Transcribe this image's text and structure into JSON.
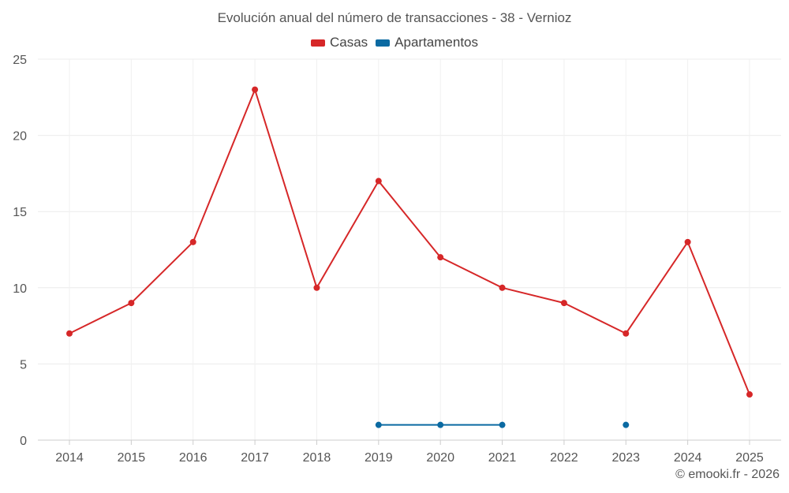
{
  "chart_data": {
    "type": "line",
    "title": "Evolución anual del número de transacciones - 38 - Vernioz",
    "xlabel": "",
    "ylabel": "",
    "categories": [
      "2014",
      "2015",
      "2016",
      "2017",
      "2018",
      "2019",
      "2020",
      "2021",
      "2022",
      "2023",
      "2024",
      "2025"
    ],
    "series": [
      {
        "name": "Casas",
        "color": "#d62728",
        "values": [
          7,
          9,
          13,
          23,
          10,
          17,
          12,
          10,
          9,
          7,
          13,
          3
        ]
      },
      {
        "name": "Apartamentos",
        "color": "#0b6aa2",
        "values": [
          null,
          null,
          null,
          null,
          null,
          1,
          1,
          1,
          null,
          1,
          null,
          null
        ]
      }
    ],
    "ylim": [
      0,
      25
    ],
    "yticks": [
      0,
      5,
      10,
      15,
      20,
      25
    ],
    "grid": true,
    "legend_position": "top-center"
  },
  "credit": "© emooki.fr - 2026"
}
